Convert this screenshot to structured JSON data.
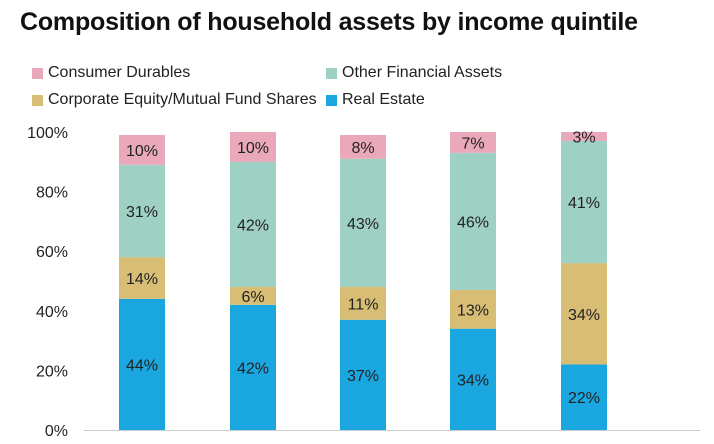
{
  "chart_data": {
    "type": "bar",
    "stacked": true,
    "title": "Composition of household assets by income quintile",
    "xlabel": "",
    "ylabel": "",
    "categories": [
      "",
      "",
      "",
      "",
      ""
    ],
    "ylim": [
      0,
      100
    ],
    "yticks": [
      "0%",
      "20%",
      "40%",
      "60%",
      "80%",
      "100%"
    ],
    "grid": false,
    "legend_position": "top",
    "series": [
      {
        "name": "Real Estate",
        "color": "#1aa7e0",
        "values": [
          44,
          42,
          37,
          34,
          22
        ],
        "labels": [
          "44%",
          "42%",
          "37%",
          "34%",
          "22%"
        ]
      },
      {
        "name": "Corporate Equity/Mutual Fund Shares",
        "color": "#d8bd75",
        "values": [
          14,
          6,
          11,
          13,
          34
        ],
        "labels": [
          "14%",
          "6%",
          "11%",
          "13%",
          "34%"
        ]
      },
      {
        "name": "Other Financial Assets",
        "color": "#9fd0c4",
        "values": [
          31,
          42,
          43,
          46,
          41
        ],
        "labels": [
          "31%",
          "42%",
          "43%",
          "46%",
          "41%"
        ]
      },
      {
        "name": "Consumer Durables",
        "color": "#e9a9ba",
        "values": [
          10,
          10,
          8,
          7,
          3
        ],
        "labels": [
          "10%",
          "10%",
          "8%",
          "7%",
          "3%"
        ]
      }
    ]
  },
  "legend": [
    {
      "name": "Consumer Durables",
      "color": "#e9a9ba"
    },
    {
      "name": "Other Financial Assets",
      "color": "#9fd0c4"
    },
    {
      "name": "Corporate Equity/Mutual Fund Shares",
      "color": "#d8bd75"
    },
    {
      "name": "Real Estate",
      "color": "#1aa7e0"
    }
  ]
}
